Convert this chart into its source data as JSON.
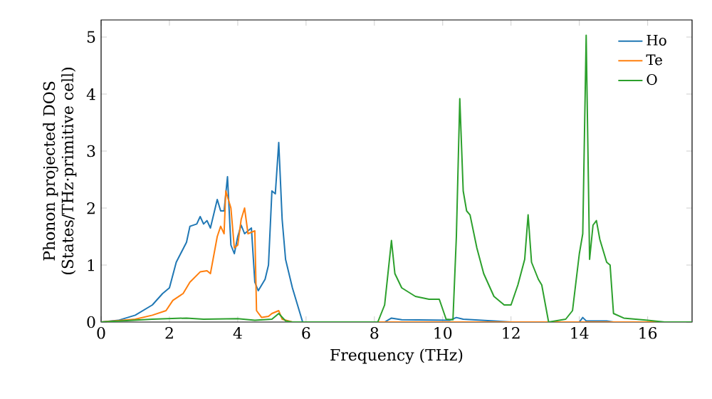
{
  "chart_data": {
    "type": "line",
    "xlabel": "Frequency (THz)",
    "ylabel": "Phonon projected DOS\n(States/THz·primitive cell)",
    "xlim": [
      0,
      17.3
    ],
    "ylim": [
      0,
      5.3
    ],
    "xticks": [
      0,
      2,
      4,
      6,
      8,
      10,
      12,
      14,
      16
    ],
    "yticks": [
      0,
      1,
      2,
      3,
      4,
      5
    ],
    "legend": "top right",
    "grid": false,
    "marker": "none",
    "line_style": "solid",
    "series": [
      {
        "name": "Ho",
        "color": "#1f77b4",
        "x": [
          0,
          0.5,
          1,
          1.5,
          1.8,
          2.0,
          2.2,
          2.5,
          2.6,
          2.8,
          2.9,
          3.0,
          3.1,
          3.2,
          3.4,
          3.5,
          3.6,
          3.7,
          3.8,
          3.9,
          4.0,
          4.1,
          4.2,
          4.4,
          4.5,
          4.6,
          4.8,
          4.9,
          5.0,
          5.1,
          5.2,
          5.3,
          5.4,
          5.6,
          5.8,
          5.9,
          8.3,
          8.5,
          8.8,
          10.2,
          10.4,
          10.6,
          11.5,
          12,
          14.0,
          14.1,
          14.2,
          14.8,
          15,
          17.3
        ],
        "values": [
          0,
          0.03,
          0.12,
          0.3,
          0.5,
          0.6,
          1.05,
          1.4,
          1.68,
          1.72,
          1.85,
          1.72,
          1.78,
          1.65,
          2.15,
          1.95,
          1.95,
          2.55,
          1.35,
          1.2,
          1.5,
          1.7,
          1.55,
          1.65,
          0.7,
          0.55,
          0.75,
          1.0,
          2.3,
          2.25,
          3.15,
          1.8,
          1.1,
          0.6,
          0.2,
          0,
          0,
          0.07,
          0.04,
          0.03,
          0.08,
          0.05,
          0.02,
          0,
          0,
          0.08,
          0.02,
          0.02,
          0,
          0
        ]
      },
      {
        "name": "Te",
        "color": "#ff7f0e",
        "x": [
          0,
          1,
          1.5,
          1.9,
          2.1,
          2.4,
          2.6,
          2.9,
          3.1,
          3.2,
          3.4,
          3.5,
          3.6,
          3.65,
          3.8,
          3.9,
          4.0,
          4.1,
          4.2,
          4.3,
          4.5,
          4.55,
          4.7,
          4.9,
          5.0,
          5.2,
          5.3,
          5.6,
          17.3
        ],
        "values": [
          0,
          0.05,
          0.12,
          0.2,
          0.38,
          0.5,
          0.7,
          0.88,
          0.9,
          0.85,
          1.5,
          1.68,
          1.55,
          2.3,
          2.0,
          1.3,
          1.35,
          1.8,
          2.0,
          1.55,
          1.6,
          0.2,
          0.08,
          0.1,
          0.15,
          0.2,
          0.05,
          0,
          0
        ]
      },
      {
        "name": "O",
        "color": "#2ca02c",
        "x": [
          0,
          1.5,
          2.5,
          3.0,
          4.0,
          4.5,
          5.0,
          5.2,
          5.4,
          5.6,
          8.1,
          8.3,
          8.5,
          8.6,
          8.8,
          9.2,
          9.6,
          9.9,
          10.1,
          10.3,
          10.4,
          10.5,
          10.6,
          10.7,
          10.8,
          11.0,
          11.2,
          11.5,
          11.8,
          12.0,
          12.2,
          12.4,
          12.5,
          12.6,
          12.8,
          12.9,
          13.1,
          13.6,
          13.8,
          13.9,
          14.0,
          14.1,
          14.2,
          14.3,
          14.4,
          14.5,
          14.6,
          14.8,
          14.9,
          15.0,
          15.3,
          16,
          16.5,
          17.3
        ],
        "values": [
          0,
          0.05,
          0.07,
          0.05,
          0.06,
          0.03,
          0.05,
          0.15,
          0.02,
          0,
          0,
          0.3,
          1.43,
          0.85,
          0.6,
          0.45,
          0.4,
          0.4,
          0.05,
          0.04,
          1.5,
          3.92,
          2.3,
          1.95,
          1.88,
          1.3,
          0.85,
          0.45,
          0.3,
          0.3,
          0.65,
          1.1,
          1.88,
          1.05,
          0.75,
          0.65,
          0,
          0.05,
          0.2,
          0.7,
          1.2,
          1.55,
          5.03,
          1.1,
          1.7,
          1.78,
          1.45,
          1.05,
          1.0,
          0.15,
          0.07,
          0.03,
          0,
          0
        ]
      }
    ]
  }
}
